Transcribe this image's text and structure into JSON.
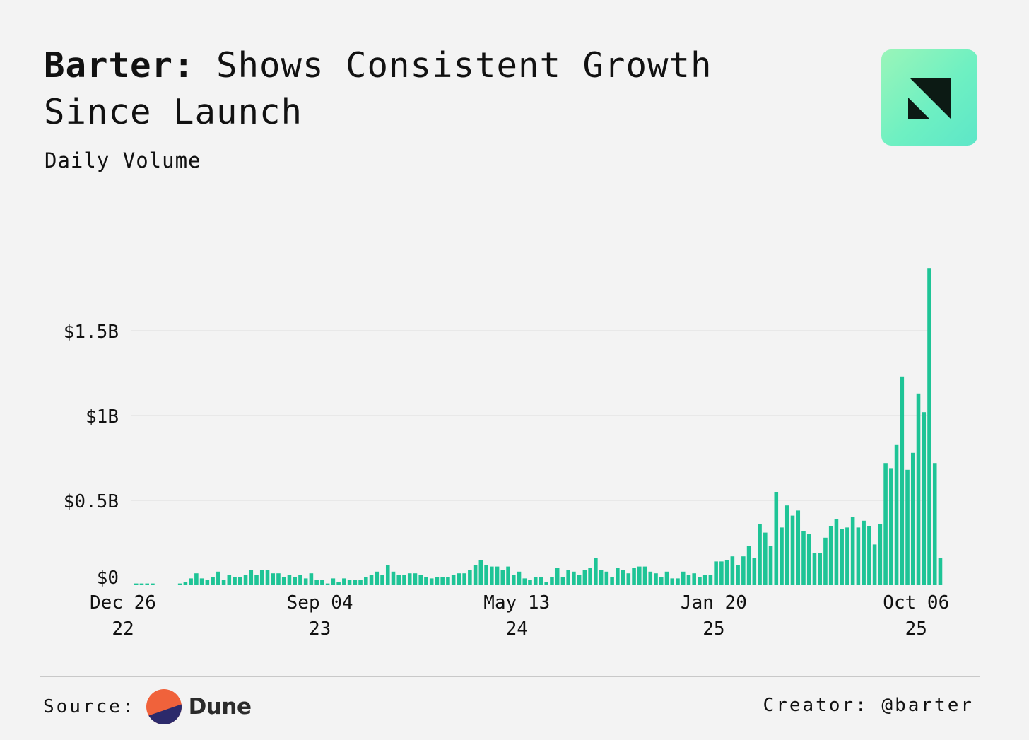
{
  "header": {
    "title_lead": "Barter:",
    "title_rest": " Shows Consistent Growth Since Launch",
    "subtitle": "Daily Volume"
  },
  "footer": {
    "source_label": "Source:",
    "source_brand": "Dune",
    "creator": "Creator: @barter"
  },
  "colors": {
    "bar": "#1ec496",
    "grid": "#e4e4e4",
    "background": "#f3f3f3",
    "dune_orange": "#f0623b",
    "dune_navy": "#2c2a6b"
  },
  "icons": {
    "brand_logo": "barter-logo-icon",
    "source_logo": "dune-logo-icon"
  },
  "chart_data": {
    "type": "bar",
    "title": "Barter: Shows Consistent Growth Since Launch",
    "subtitle": "Daily Volume",
    "x_range": [
      "2022-12-26",
      "2025-10-13"
    ],
    "x_ticks": [
      {
        "date": "2022-12-26",
        "line1": "Dec 26",
        "line2": "22"
      },
      {
        "date": "2023-09-04",
        "line1": "Sep 04",
        "line2": "23"
      },
      {
        "date": "2024-05-13",
        "line1": "May 13",
        "line2": "24"
      },
      {
        "date": "2025-01-20",
        "line1": "Jan 20",
        "line2": "25"
      },
      {
        "date": "2025-10-06",
        "line1": "Oct 06",
        "line2": "25"
      }
    ],
    "y_ticks": [
      {
        "value": 0,
        "label": "$0"
      },
      {
        "value": 500000000,
        "label": "$0.5B"
      },
      {
        "value": 1000000000,
        "label": "$1B"
      },
      {
        "value": 1500000000,
        "label": "$1.5B"
      }
    ],
    "ylim": [
      0,
      1900000000
    ],
    "grid": true,
    "interval": "weekly",
    "series": [
      {
        "first_week": "2023-01-02",
        "values": [
          0.01,
          0.01,
          0.01,
          0.01,
          0.0,
          0.0,
          0.0,
          0.0,
          0.01,
          0.02,
          0.04,
          0.07,
          0.04,
          0.03,
          0.05,
          0.08,
          0.03,
          0.06,
          0.05,
          0.05,
          0.06,
          0.09,
          0.06,
          0.09,
          0.09,
          0.07,
          0.07,
          0.05,
          0.06,
          0.05,
          0.06,
          0.04,
          0.07,
          0.03,
          0.03,
          0.01,
          0.04,
          0.02,
          0.04,
          0.03,
          0.03,
          0.03,
          0.05,
          0.06,
          0.08,
          0.06,
          0.12,
          0.08,
          0.06,
          0.06,
          0.07,
          0.07,
          0.06,
          0.05,
          0.04,
          0.05,
          0.05,
          0.05,
          0.06,
          0.07,
          0.07,
          0.09,
          0.12,
          0.15,
          0.12,
          0.11,
          0.11,
          0.09,
          0.11,
          0.06,
          0.08,
          0.04,
          0.03,
          0.05,
          0.05,
          0.02,
          0.05,
          0.1,
          0.05,
          0.09,
          0.08,
          0.06,
          0.09,
          0.1,
          0.16,
          0.09,
          0.08,
          0.05,
          0.1,
          0.09,
          0.07,
          0.1,
          0.11,
          0.11,
          0.08,
          0.07,
          0.05,
          0.08,
          0.04,
          0.04,
          0.08,
          0.06,
          0.07,
          0.05,
          0.06,
          0.06,
          0.14,
          0.14,
          0.15,
          0.17,
          0.12,
          0.17,
          0.23,
          0.16,
          0.36,
          0.31,
          0.23,
          0.55,
          0.34,
          0.47,
          0.41,
          0.44,
          0.32,
          0.3,
          0.19,
          0.19,
          0.28,
          0.35,
          0.39,
          0.33,
          0.34,
          0.4,
          0.34,
          0.38,
          0.35,
          0.24,
          0.36,
          0.72,
          0.69,
          0.83,
          1.23,
          0.68,
          0.78,
          1.13,
          1.02,
          1.87,
          0.72,
          0.16
        ]
      }
    ],
    "value_unit": "billions USD"
  }
}
